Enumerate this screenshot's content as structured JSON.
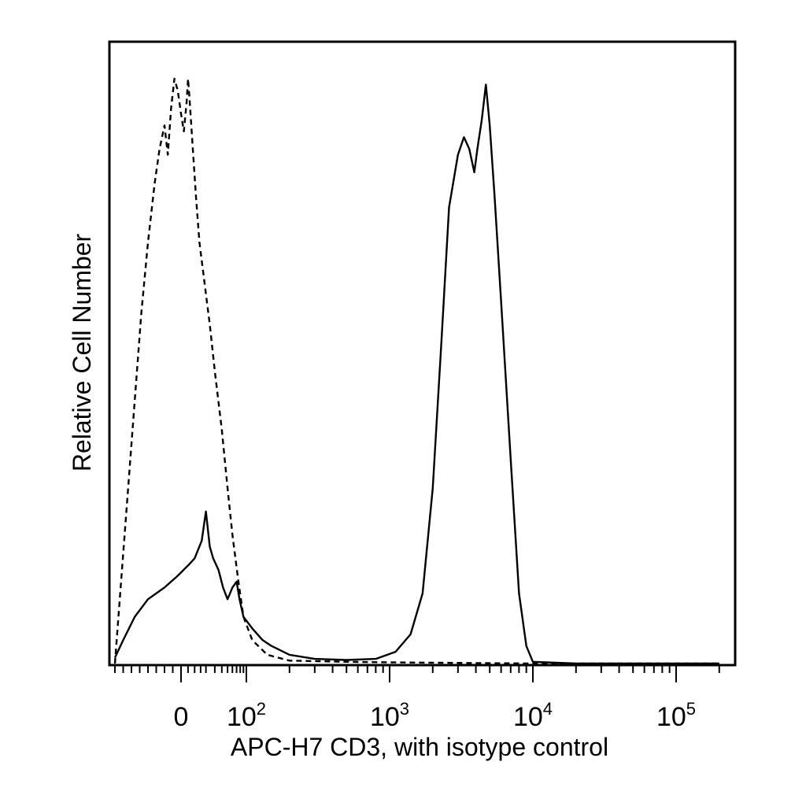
{
  "chart_data": {
    "type": "line",
    "title": "",
    "xlabel": "APC-H7 CD3, with isotype control",
    "ylabel": "Relative Cell Number",
    "x_scale": "biexponential (logicle)",
    "xlim": [
      -40,
      200000
    ],
    "ylim": [
      0,
      100
    ],
    "grid": false,
    "legend": "none",
    "x_tick_labels": [
      {
        "value": 0,
        "base": "0",
        "exp": ""
      },
      {
        "value": 100,
        "base": "10",
        "exp": "2"
      },
      {
        "value": 1000,
        "base": "10",
        "exp": "3"
      },
      {
        "value": 10000,
        "base": "10",
        "exp": "4"
      },
      {
        "value": 100000,
        "base": "10",
        "exp": "5"
      }
    ],
    "series": [
      {
        "style": "solid",
        "color": "#000000",
        "points": [
          [
            -40,
            1
          ],
          [
            -35,
            4
          ],
          [
            -28,
            8
          ],
          [
            -20,
            11
          ],
          [
            -10,
            13
          ],
          [
            -2,
            15
          ],
          [
            6,
            17
          ],
          [
            10,
            18
          ],
          [
            16,
            21
          ],
          [
            20,
            26
          ],
          [
            24,
            20
          ],
          [
            28,
            18
          ],
          [
            35,
            16
          ],
          [
            42,
            13
          ],
          [
            50,
            11
          ],
          [
            60,
            13
          ],
          [
            70,
            14
          ],
          [
            78,
            11
          ],
          [
            90,
            8
          ],
          [
            110,
            6
          ],
          [
            130,
            4
          ],
          [
            150,
            3
          ],
          [
            200,
            1.5
          ],
          [
            300,
            0.8
          ],
          [
            500,
            0.6
          ],
          [
            800,
            0.8
          ],
          [
            1100,
            2
          ],
          [
            1400,
            5
          ],
          [
            1700,
            12
          ],
          [
            2000,
            30
          ],
          [
            2300,
            55
          ],
          [
            2600,
            78
          ],
          [
            3000,
            87
          ],
          [
            3300,
            90
          ],
          [
            3600,
            88
          ],
          [
            3900,
            84
          ],
          [
            4100,
            88
          ],
          [
            4400,
            93
          ],
          [
            4700,
            99
          ],
          [
            5000,
            92
          ],
          [
            5400,
            80
          ],
          [
            6000,
            62
          ],
          [
            7000,
            35
          ],
          [
            8000,
            12
          ],
          [
            9000,
            3
          ],
          [
            10000,
            0.3
          ],
          [
            20000,
            0
          ],
          [
            100000,
            0
          ],
          [
            200000,
            0
          ]
        ]
      },
      {
        "style": "dashed",
        "color": "#000000",
        "points": [
          [
            -40,
            0
          ],
          [
            -36,
            15
          ],
          [
            -32,
            30
          ],
          [
            -28,
            45
          ],
          [
            -24,
            60
          ],
          [
            -20,
            72
          ],
          [
            -16,
            82
          ],
          [
            -13,
            88
          ],
          [
            -10,
            92
          ],
          [
            -8,
            87
          ],
          [
            -6,
            95
          ],
          [
            -4,
            100
          ],
          [
            -2,
            98
          ],
          [
            0,
            94
          ],
          [
            2,
            91
          ],
          [
            4,
            96
          ],
          [
            5,
            100
          ],
          [
            6,
            97
          ],
          [
            8,
            90
          ],
          [
            11,
            80
          ],
          [
            14,
            72
          ],
          [
            18,
            66
          ],
          [
            24,
            58
          ],
          [
            30,
            50
          ],
          [
            40,
            40
          ],
          [
            50,
            30
          ],
          [
            60,
            22
          ],
          [
            75,
            14
          ],
          [
            90,
            8
          ],
          [
            110,
            4
          ],
          [
            140,
            1.5
          ],
          [
            200,
            0.5
          ],
          [
            500,
            0.3
          ],
          [
            1000,
            0.2
          ],
          [
            10000,
            0
          ],
          [
            200000,
            0
          ]
        ]
      }
    ]
  }
}
